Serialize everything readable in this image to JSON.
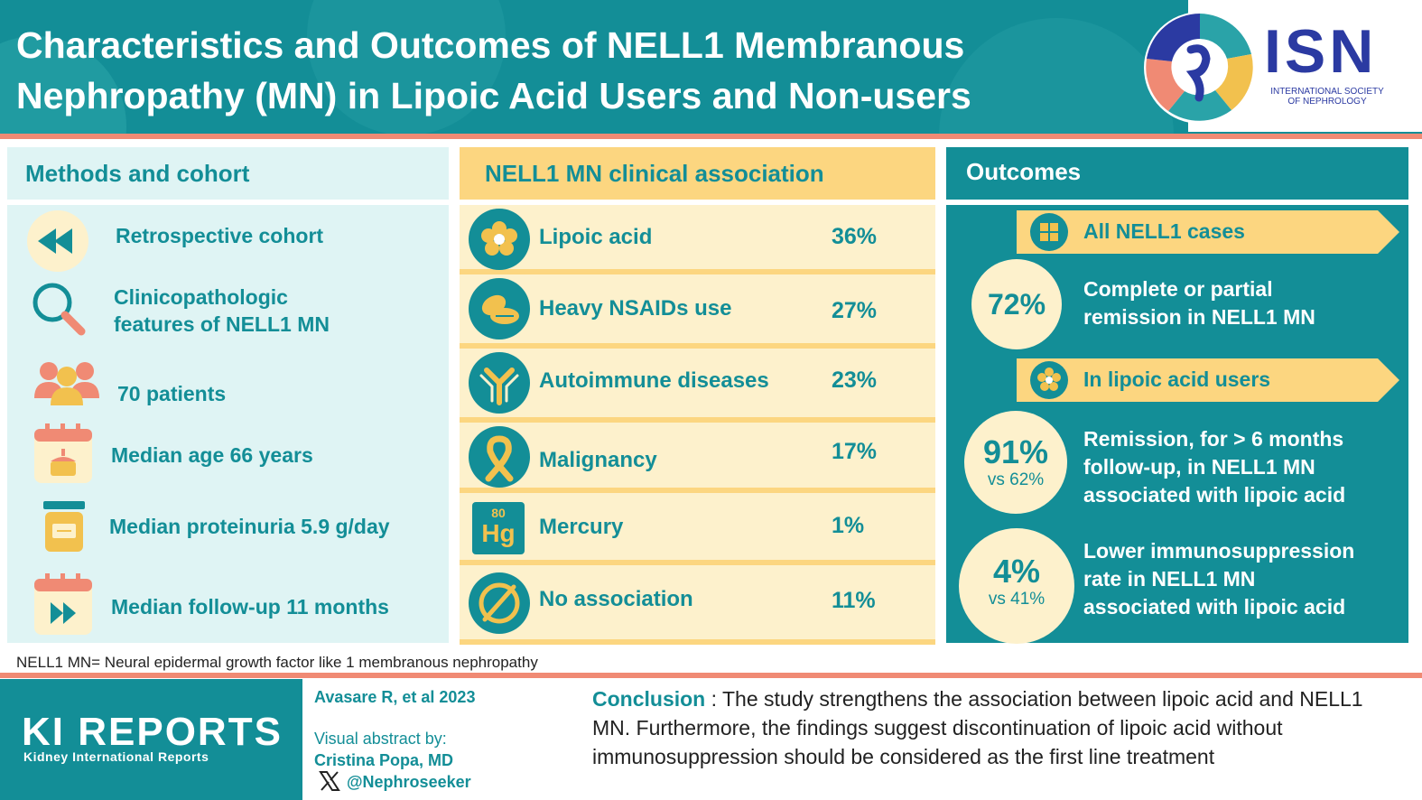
{
  "header": {
    "title_line1": "Characteristics and Outcomes of NELL1 Membranous",
    "title_line2": "Nephropathy (MN) in Lipoic Acid Users and Non-users",
    "logo_text": "ISN",
    "logo_subtitle_line1": "INTERNATIONAL SOCIETY",
    "logo_subtitle_line2": "OF NEPHROLOGY"
  },
  "methods": {
    "heading": "Methods and cohort",
    "items": [
      {
        "icon": "rewind-icon",
        "lines": [
          "Retrospective cohort"
        ]
      },
      {
        "icon": "magnifier-icon",
        "lines": [
          "Clinicopathologic",
          "features of NELL1 MN"
        ]
      },
      {
        "icon": "patients-icon",
        "lines": [
          "70 patients"
        ]
      },
      {
        "icon": "birthday-calendar-icon",
        "lines": [
          "Median age 66 years"
        ]
      },
      {
        "icon": "urine-container-icon",
        "lines": [
          "Median proteinuria  5.9 g/day"
        ]
      },
      {
        "icon": "forward-calendar-icon",
        "lines": [
          "Median follow-up  11 months"
        ]
      }
    ]
  },
  "association": {
    "heading": "NELL1 MN clinical association",
    "items": [
      {
        "icon": "lipoic-acid-icon",
        "label": "Lipoic acid",
        "value": "36%"
      },
      {
        "icon": "pills-icon",
        "label": "Heavy NSAIDs use",
        "value": "27%"
      },
      {
        "icon": "antibody-icon",
        "label": "Autoimmune diseases",
        "value": "23%"
      },
      {
        "icon": "ribbon-icon",
        "label": "Malignancy",
        "value": "17%"
      },
      {
        "icon": "mercury-icon",
        "label": "Mercury",
        "value": "1%",
        "element_number": "80",
        "element_symbol": "Hg"
      },
      {
        "icon": "no-association-icon",
        "label": "No association",
        "value": "11%"
      }
    ]
  },
  "outcomes": {
    "heading": "Outcomes",
    "banner_all": "All NELL1 cases",
    "banner_lipoic": "In lipoic acid users",
    "stat1": {
      "value": "72%",
      "lines": [
        "Complete or partial",
        "remission in NELL1 MN"
      ]
    },
    "stat2": {
      "value": "91%",
      "comparison": "vs 62%",
      "lines": [
        "Remission, for > 6 months",
        "follow-up, in NELL1 MN",
        "associated with lipoic acid"
      ]
    },
    "stat3": {
      "value": "4%",
      "comparison": "vs 41%",
      "lines": [
        "Lower immunosuppression",
        "rate in NELL1 MN",
        "associated with lipoic acid"
      ]
    }
  },
  "footnote": "NELL1 MN= Neural epidermal growth factor like 1 membranous nephropathy",
  "footer": {
    "journal": "KI REPORTS",
    "journal_subtitle": "Kidney International Reports",
    "citation": "Avasare R, et al 2023",
    "abstract_by": "Visual abstract by:",
    "author": "Cristina Popa, MD",
    "handle": "@Nephroseeker",
    "conclusion_label": "Conclusion",
    "conclusion_text": " : The study strengthens the association between lipoic acid and NELL1 MN. Furthermore, the findings suggest discontinuation of lipoic acid without immunosuppression should be considered as the first line treatment"
  },
  "colors": {
    "teal": "#138e97",
    "cream": "#fdf1cc",
    "yellow": "#fcd680",
    "light_teal": "#dff4f4",
    "coral": "#f08a74",
    "isn_blue": "#2b3aa2"
  }
}
